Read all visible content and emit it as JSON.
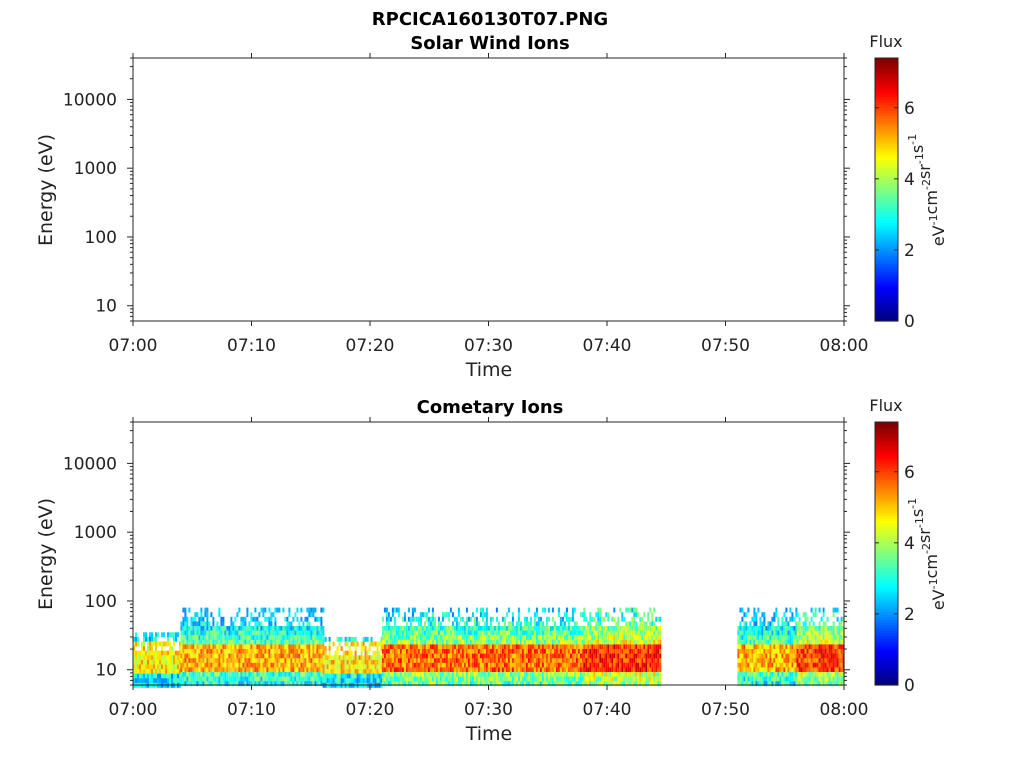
{
  "figure_title": "RPCICA160130T07.PNG",
  "chart_data": [
    {
      "type": "heatmap",
      "title": "Solar Wind Ions",
      "xlabel": "Time",
      "ylabel": "Energy (eV)",
      "x_range": [
        "07:00",
        "08:00"
      ],
      "x_ticks": [
        "07:00",
        "07:10",
        "07:20",
        "07:30",
        "07:40",
        "07:50",
        "08:00"
      ],
      "y_scale": "log",
      "y_range": [
        6,
        40000
      ],
      "y_ticks": [
        {
          "value": 10,
          "label": "10"
        },
        {
          "value": 100,
          "label": "100"
        },
        {
          "value": 1000,
          "label": "1000"
        },
        {
          "value": 10000,
          "label": "10000"
        }
      ],
      "colorbar": {
        "label": "Flux",
        "unit_parts": [
          [
            "eV",
            "-1"
          ],
          [
            "cm",
            "-2"
          ],
          [
            "sr",
            "-1"
          ],
          [
            "s",
            "-1"
          ]
        ],
        "range": [
          0,
          7.4
        ],
        "ticks": [
          "0",
          "2",
          "4",
          "6"
        ],
        "colormap": "jet"
      },
      "segments": []
    },
    {
      "type": "heatmap",
      "title": "Cometary Ions",
      "xlabel": "Time",
      "ylabel": "Energy (eV)",
      "x_range": [
        "07:00",
        "08:00"
      ],
      "x_ticks": [
        "07:00",
        "07:10",
        "07:20",
        "07:30",
        "07:40",
        "07:50",
        "08:00"
      ],
      "y_scale": "log",
      "y_range": [
        6,
        40000
      ],
      "y_ticks": [
        {
          "value": 10,
          "label": "10"
        },
        {
          "value": 100,
          "label": "100"
        },
        {
          "value": 1000,
          "label": "1000"
        },
        {
          "value": 10000,
          "label": "10000"
        }
      ],
      "colorbar": {
        "label": "Flux",
        "unit_parts": [
          [
            "eV",
            "-1"
          ],
          [
            "cm",
            "-2"
          ],
          [
            "sr",
            "-1"
          ],
          [
            "s",
            "-1"
          ]
        ],
        "range": [
          0,
          7.4
        ],
        "ticks": [
          "0",
          "2",
          "4",
          "6"
        ],
        "colormap": "jet"
      },
      "segments": [
        {
          "start": "07:00",
          "end": "07:04",
          "energy_max": 35,
          "peak_flux": 5.5
        },
        {
          "start": "07:04",
          "end": "07:16",
          "energy_max": 80,
          "peak_flux": 6.0
        },
        {
          "start": "07:16",
          "end": "07:21",
          "energy_max": 30,
          "peak_flux": 5.6
        },
        {
          "start": "07:21",
          "end": "07:38",
          "energy_max": 80,
          "peak_flux": 6.5
        },
        {
          "start": "07:38",
          "end": "07:44.5",
          "energy_max": 80,
          "peak_flux": 7.0
        },
        {
          "start": "07:51",
          "end": "07:56",
          "energy_max": 80,
          "peak_flux": 6.0
        },
        {
          "start": "07:56",
          "end": "08:00",
          "energy_max": 80,
          "peak_flux": 6.8
        }
      ],
      "core_energy_range": [
        9,
        25
      ]
    }
  ]
}
